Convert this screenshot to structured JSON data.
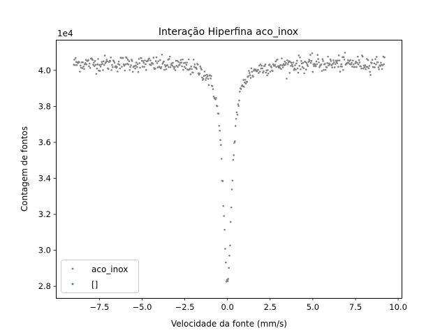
{
  "chart_data": {
    "type": "scatter",
    "title": "Interação Hiperfina aco_inox",
    "xlabel": "Velocidade da fonte (mm/s)",
    "ylabel": "Contagem de fontos",
    "y_offset_label": "1e4",
    "xlim": [
      -10.05,
      10.2
    ],
    "ylim": [
      27350,
      41700
    ],
    "x_ticks": [
      -7.5,
      -5.0,
      -2.5,
      0.0,
      2.5,
      5.0,
      7.5,
      10.0
    ],
    "x_tick_labels": [
      "−7.5",
      "−5.0",
      "−2.5",
      "0.0",
      "2.5",
      "5.0",
      "7.5",
      "10.0"
    ],
    "y_ticks": [
      28000,
      30000,
      32000,
      34000,
      36000,
      38000,
      40000
    ],
    "y_tick_labels": [
      "2.8",
      "3.0",
      "3.2",
      "3.4",
      "3.6",
      "3.8",
      "4.0"
    ],
    "grid": false,
    "legend_position": "lower-left",
    "series": [
      {
        "name": "aco_inox",
        "color": "#808080",
        "x_range": [
          -9.0,
          9.2
        ],
        "point_count": 512,
        "baseline": 40400,
        "dip_center": 0.0,
        "dip_min": 27950,
        "dip_hwhm": 0.3,
        "noise": 220
      },
      {
        "name": "[]",
        "color": "#1f77b4",
        "x": [],
        "y": []
      }
    ]
  }
}
